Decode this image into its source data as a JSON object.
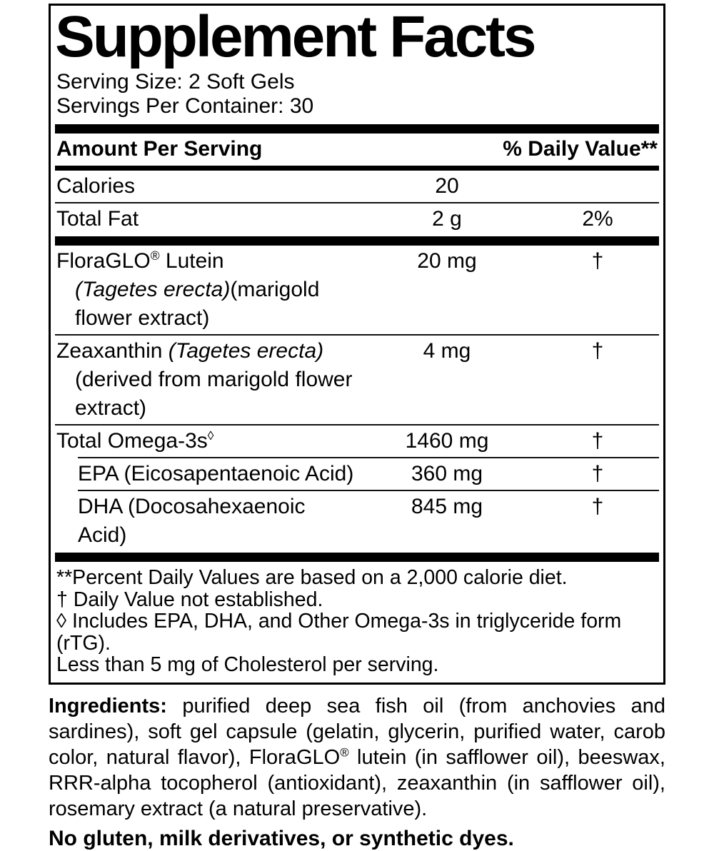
{
  "panel": {
    "title": "Supplement Facts",
    "serving_size": "Serving Size: 2 Soft Gels",
    "servings_per_container": "Servings Per Container: 30",
    "header": {
      "amount_label": "Amount Per Serving",
      "dv_label": "% Daily Value**"
    },
    "rows": [
      {
        "name": [
          {
            "t": "Calories"
          }
        ],
        "amount": "20",
        "dv": ""
      },
      {
        "name": [
          {
            "t": "Total Fat"
          }
        ],
        "amount": "2 g",
        "dv": "2%"
      },
      {
        "name": [
          {
            "t": "FloraGLO"
          },
          {
            "t": "®",
            "sup": true
          },
          {
            "t": " Lutein"
          }
        ],
        "name2": [
          {
            "t": "(Tagetes erecta)",
            "i": true
          },
          {
            "t": "(marigold flower extract)"
          }
        ],
        "amount": "20 mg",
        "dv": "†"
      },
      {
        "name": [
          {
            "t": "Zeaxanthin "
          },
          {
            "t": "(Tagetes erecta)",
            "i": true
          }
        ],
        "name2": [
          {
            "t": "(derived from marigold flower extract)"
          }
        ],
        "amount": "4 mg",
        "dv": "†"
      },
      {
        "name": [
          {
            "t": "Total Omega-3s"
          },
          {
            "t": "◊",
            "sup": true
          }
        ],
        "amount": "1460 mg",
        "dv": "†"
      },
      {
        "name": [
          {
            "t": "EPA (Eicosapentaenoic Acid)"
          }
        ],
        "amount": "360 mg",
        "dv": "†"
      },
      {
        "name": [
          {
            "t": "DHA (Docosahexaenoic Acid)"
          }
        ],
        "amount": "845 mg",
        "dv": "†"
      }
    ],
    "footnotes": [
      "**Percent Daily Values are based on a 2,000 calorie diet.",
      "† Daily Value not established.",
      "◊ Includes EPA, DHA, and Other Omega-3s in triglyceride form (rTG).",
      "Less than 5 mg of Cholesterol per serving."
    ]
  },
  "ingredients": {
    "segments": [
      {
        "t": "Ingredients:",
        "b": true
      },
      {
        "t": " purified deep sea fish oil (from anchovies and sardines), soft gel capsule (gelatin, glycerin, purified water, carob color, natural flavor), FloraGLO"
      },
      {
        "t": "®",
        "sup": true
      },
      {
        "t": " lutein (in safflower oil), beeswax, RRR-alpha tocopherol (antioxidant), zeaxanthin (in safflower oil), rosemary extract (a natural preservative)."
      }
    ]
  },
  "allergen_statement": "No gluten, milk derivatives, or synthetic dyes.",
  "colors": {
    "ink": "#000000",
    "background": "#ffffff"
  }
}
